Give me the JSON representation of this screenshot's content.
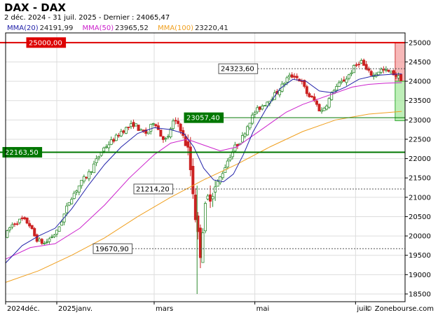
{
  "header": {
    "title": "DAX - DAX",
    "subtitle": "2 déc. 2024 - 31 juil. 2025 - Dernier : 24065,47"
  },
  "legend": [
    {
      "name": "MMA(20)",
      "value": "24191,99",
      "color": "#2222aa"
    },
    {
      "name": "MMA(50)",
      "value": "23965,52",
      "color": "#cc22cc"
    },
    {
      "name": "MMA(100)",
      "value": "23220,41",
      "color": "#f0a020"
    }
  ],
  "watermark": "© Zonebourse.com",
  "colors": {
    "up": "#2e8b2e",
    "down": "#cc2222",
    "resistance": "#dd0000",
    "support": "#007700",
    "annotation": "#555555"
  },
  "chart_data": {
    "type": "candlestick",
    "y_ticks": [
      18500,
      19000,
      19500,
      20000,
      20500,
      21000,
      21500,
      22000,
      22500,
      23000,
      23500,
      24000,
      24500,
      25000
    ],
    "y_tick_labels": [
      "18500",
      "19000",
      "19500",
      "20000",
      "20500",
      "21000",
      "21500",
      "22000",
      "22500",
      "23000",
      "23500",
      "24000",
      "24500",
      "25000"
    ],
    "ylim": [
      18300,
      25250
    ],
    "x_labels": [
      {
        "label": "2024déc.",
        "day": 0
      },
      {
        "label": "2025janv.",
        "day": 31
      },
      {
        "label": "mars",
        "day": 90
      },
      {
        "label": "mai",
        "day": 151
      },
      {
        "label": "juil.",
        "day": 212
      }
    ],
    "xlim": [
      0,
      242
    ],
    "lines": [
      {
        "label": "25000,00",
        "value": 25000,
        "kind": "resistance"
      },
      {
        "label": "22163,50",
        "value": 22163.5,
        "kind": "support"
      }
    ],
    "levels": [
      {
        "label": "24323,60",
        "value": 24323.6,
        "kind": "dashed"
      },
      {
        "label": "23057,40",
        "value": 23057.4,
        "kind": "support"
      },
      {
        "label": "21214,20",
        "value": 21214.2,
        "kind": "dashed"
      },
      {
        "label": "19670,90",
        "value": 19670.9,
        "kind": "dashed"
      }
    ],
    "zones": [
      {
        "from_day": 236,
        "to_day": 242,
        "from_value": 24000,
        "to_value": 25000,
        "kind": "red"
      },
      {
        "from_day": 236,
        "to_day": 242,
        "from_value": 22980,
        "to_value": 24000,
        "kind": "green"
      }
    ],
    "anchors": [
      [
        0,
        20000
      ],
      [
        3,
        20250
      ],
      [
        6,
        20350
      ],
      [
        10,
        20420
      ],
      [
        14,
        20330
      ],
      [
        18,
        19950
      ],
      [
        21,
        19850
      ],
      [
        24,
        19800
      ],
      [
        27,
        19950
      ],
      [
        31,
        20100
      ],
      [
        35,
        20500
      ],
      [
        39,
        20950
      ],
      [
        43,
        21200
      ],
      [
        47,
        21450
      ],
      [
        51,
        21650
      ],
      [
        55,
        21950
      ],
      [
        59,
        22250
      ],
      [
        63,
        22400
      ],
      [
        67,
        22550
      ],
      [
        70,
        22700
      ],
      [
        74,
        22800
      ],
      [
        78,
        22900
      ],
      [
        82,
        22700
      ],
      [
        86,
        22650
      ],
      [
        90,
        23000
      ],
      [
        94,
        22600
      ],
      [
        98,
        22450
      ],
      [
        101,
        22950
      ],
      [
        105,
        22900
      ],
      [
        108,
        22500
      ],
      [
        111,
        22100
      ],
      [
        114,
        21000
      ],
      [
        116,
        20100
      ],
      [
        118,
        19600
      ],
      [
        120,
        20450
      ],
      [
        122,
        20900
      ],
      [
        124,
        21100
      ],
      [
        127,
        21250
      ],
      [
        131,
        21600
      ],
      [
        135,
        22000
      ],
      [
        139,
        22300
      ],
      [
        143,
        22500
      ],
      [
        147,
        22900
      ],
      [
        151,
        23200
      ],
      [
        155,
        23350
      ],
      [
        159,
        23500
      ],
      [
        163,
        23650
      ],
      [
        167,
        23850
      ],
      [
        171,
        24100
      ],
      [
        175,
        24150
      ],
      [
        179,
        24000
      ],
      [
        183,
        23650
      ],
      [
        187,
        23500
      ],
      [
        191,
        23200
      ],
      [
        195,
        23450
      ],
      [
        199,
        23800
      ],
      [
        203,
        23950
      ],
      [
        207,
        24100
      ],
      [
        211,
        24350
      ],
      [
        215,
        24550
      ],
      [
        219,
        24250
      ],
      [
        223,
        24150
      ],
      [
        227,
        24300
      ],
      [
        231,
        24250
      ],
      [
        235,
        24200
      ],
      [
        239,
        24065
      ]
    ],
    "ma20": [
      [
        0,
        19300
      ],
      [
        10,
        19750
      ],
      [
        20,
        20000
      ],
      [
        30,
        20200
      ],
      [
        40,
        20700
      ],
      [
        50,
        21300
      ],
      [
        60,
        21850
      ],
      [
        70,
        22300
      ],
      [
        80,
        22650
      ],
      [
        90,
        22800
      ],
      [
        100,
        22750
      ],
      [
        108,
        22650
      ],
      [
        114,
        22300
      ],
      [
        120,
        21750
      ],
      [
        126,
        21450
      ],
      [
        132,
        21400
      ],
      [
        138,
        21600
      ],
      [
        144,
        22100
      ],
      [
        150,
        22700
      ],
      [
        158,
        23300
      ],
      [
        166,
        23800
      ],
      [
        174,
        24050
      ],
      [
        182,
        24000
      ],
      [
        190,
        23750
      ],
      [
        198,
        23700
      ],
      [
        206,
        23850
      ],
      [
        214,
        24050
      ],
      [
        224,
        24150
      ],
      [
        234,
        24180
      ],
      [
        240,
        24190
      ]
    ],
    "ma50": [
      [
        0,
        19400
      ],
      [
        15,
        19700
      ],
      [
        30,
        19800
      ],
      [
        45,
        20200
      ],
      [
        60,
        20800
      ],
      [
        75,
        21500
      ],
      [
        90,
        22100
      ],
      [
        100,
        22400
      ],
      [
        110,
        22500
      ],
      [
        120,
        22350
      ],
      [
        130,
        22200
      ],
      [
        140,
        22300
      ],
      [
        150,
        22600
      ],
      [
        160,
        22900
      ],
      [
        170,
        23200
      ],
      [
        180,
        23400
      ],
      [
        190,
        23550
      ],
      [
        200,
        23700
      ],
      [
        210,
        23850
      ],
      [
        220,
        23920
      ],
      [
        230,
        23950
      ],
      [
        240,
        23965
      ]
    ],
    "ma100": [
      [
        0,
        18800
      ],
      [
        20,
        19100
      ],
      [
        40,
        19500
      ],
      [
        60,
        19950
      ],
      [
        80,
        20500
      ],
      [
        100,
        21000
      ],
      [
        120,
        21450
      ],
      [
        140,
        21850
      ],
      [
        160,
        22300
      ],
      [
        180,
        22700
      ],
      [
        200,
        23000
      ],
      [
        220,
        23150
      ],
      [
        240,
        23220
      ]
    ]
  }
}
